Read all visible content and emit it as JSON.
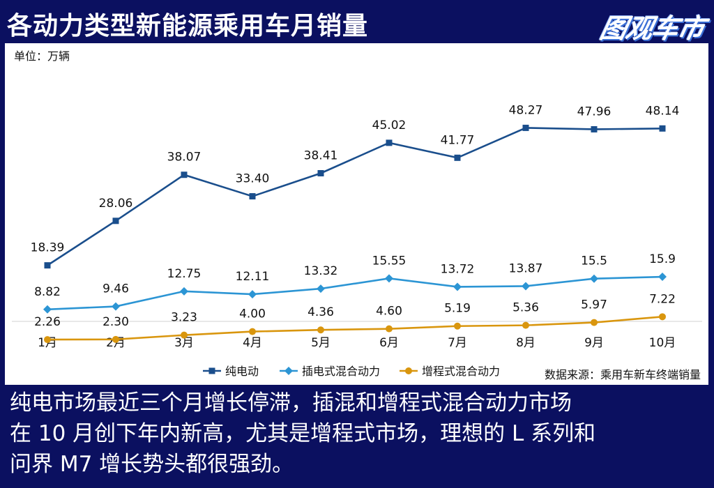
{
  "header": {
    "title": "各动力类型新能源乘用车月销量",
    "logo_text": "图观车市"
  },
  "caption": {
    "lines": [
      "纯电市场最近三个月增长停滞，插混和增程式混合动力市场",
      "在 10 月创下年内新高，尤其是增程式市场，理想的 L 系列和",
      "问界 M7 增长势头都很强劲。"
    ]
  },
  "chart_data": {
    "type": "line",
    "unit_label": "单位：万辆",
    "source_label": "数据来源：乘用车新车终端销量",
    "categories": [
      "1月",
      "2月",
      "3月",
      "4月",
      "5月",
      "6月",
      "7月",
      "8月",
      "9月",
      "10月"
    ],
    "y_range": [
      0,
      55
    ],
    "grid": false,
    "legend_position": "bottom",
    "series": [
      {
        "name": "纯电动",
        "color": "#1a4e8c",
        "marker": "square",
        "values": [
          18.39,
          28.06,
          38.07,
          33.4,
          38.41,
          45.02,
          41.77,
          48.27,
          47.96,
          48.14
        ],
        "labels": [
          "18.39",
          "28.06",
          "38.07",
          "33.40",
          "38.41",
          "45.02",
          "41.77",
          "48.27",
          "47.96",
          "48.14"
        ]
      },
      {
        "name": "插电式混合动力",
        "color": "#2c95d4",
        "marker": "diamond",
        "values": [
          8.82,
          9.46,
          12.75,
          12.11,
          13.32,
          15.55,
          13.72,
          13.87,
          15.5,
          15.9
        ],
        "labels": [
          "8.82",
          "9.46",
          "12.75",
          "12.11",
          "13.32",
          "15.55",
          "13.72",
          "13.87",
          "15.5",
          "15.9"
        ]
      },
      {
        "name": "增程式混合动力",
        "color": "#d9960e",
        "marker": "circle",
        "values": [
          2.26,
          2.3,
          3.23,
          4.0,
          4.36,
          4.6,
          5.19,
          5.36,
          5.97,
          7.22
        ],
        "labels": [
          "2.26",
          "2.30",
          "3.23",
          "4.00",
          "4.36",
          "4.60",
          "5.19",
          "5.36",
          "5.97",
          "7.22"
        ]
      }
    ]
  }
}
